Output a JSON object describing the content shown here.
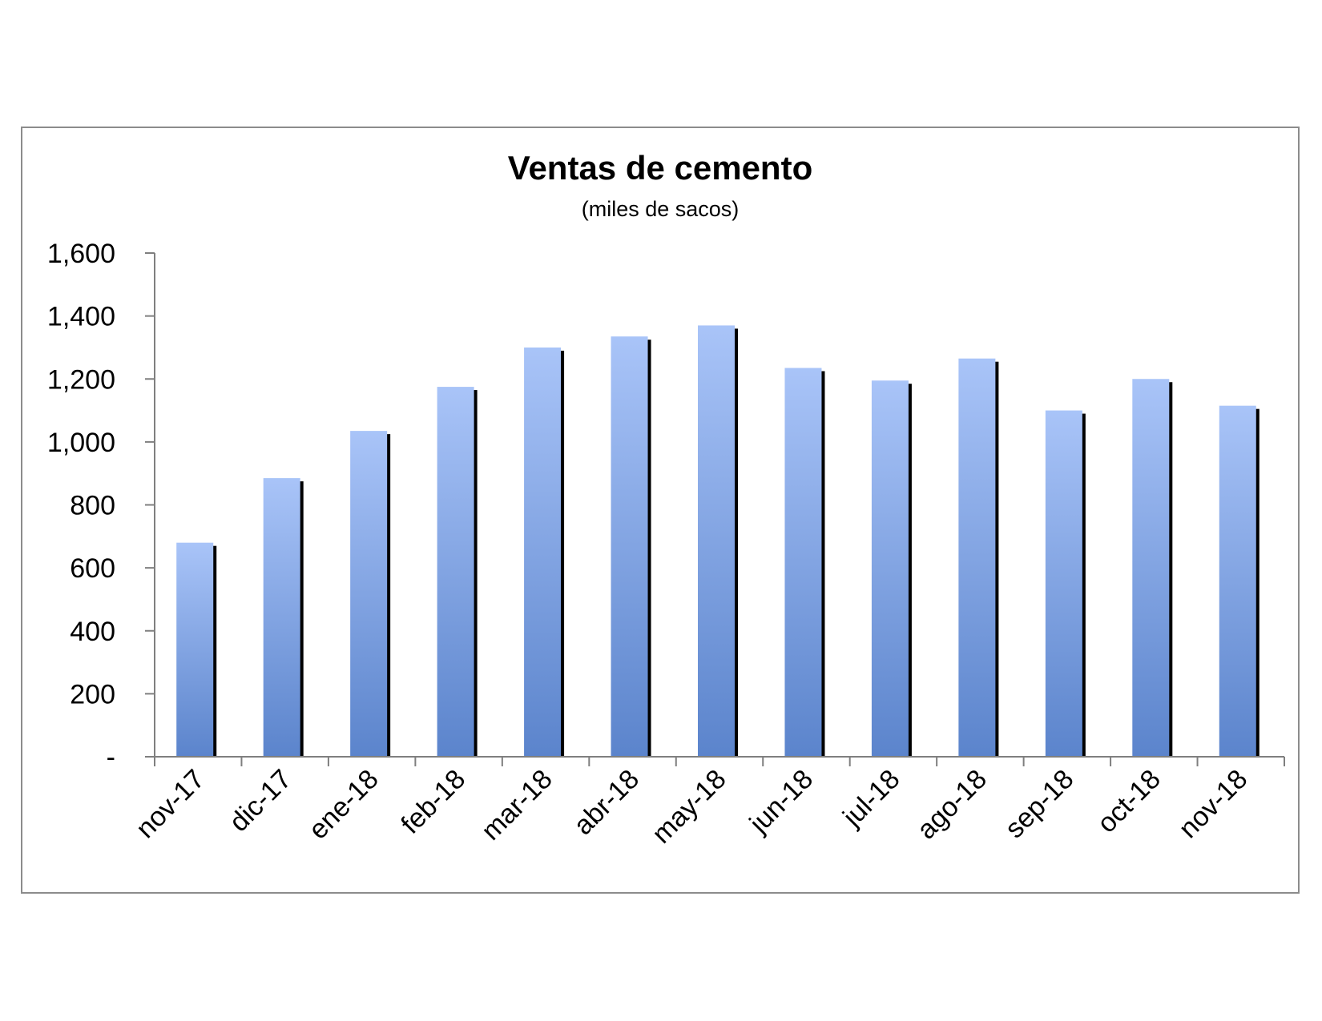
{
  "chart_data": {
    "type": "bar",
    "title": "Ventas de cemento",
    "subtitle": "(miles de sacos)",
    "categories": [
      "nov-17",
      "dic-17",
      "ene-18",
      "feb-18",
      "mar-18",
      "abr-18",
      "may-18",
      "jun-18",
      "jul-18",
      "ago-18",
      "sep-18",
      "oct-18",
      "nov-18"
    ],
    "values": [
      680,
      885,
      1035,
      1175,
      1300,
      1335,
      1370,
      1235,
      1195,
      1265,
      1100,
      1200,
      1115
    ],
    "ylim": [
      0,
      1600
    ],
    "yticks": [
      0,
      200,
      400,
      600,
      800,
      1000,
      1200,
      1400,
      1600
    ],
    "ytick_labels": [
      "-",
      "200",
      "400",
      "600",
      "800",
      "1,000",
      "1,200",
      "1,400",
      "1,600"
    ],
    "grid": false,
    "legend": "none",
    "colors": {
      "bar_top": "#a9c4f8",
      "bar_bottom": "#5b84cc",
      "bar_shadow": "#000000",
      "axis": "#7f7f7f",
      "frame": "#8c8c8c"
    }
  }
}
